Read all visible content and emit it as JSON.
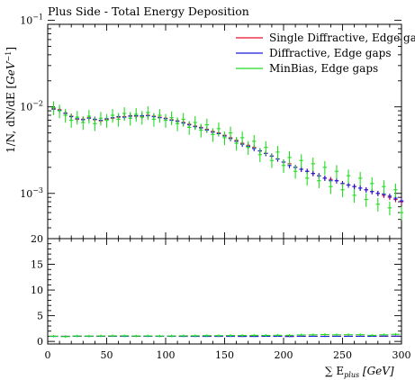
{
  "chart_data": {
    "type": "scatter",
    "title": "Plus Side - Total Energy Deposition",
    "ylabel": "1/N, dN/dE [GeV^{-1}]",
    "xlabel": "∑ E_plus [GeV]",
    "xlim": [
      0,
      300
    ],
    "xticks": [
      "0",
      "50",
      "100",
      "150",
      "200",
      "250",
      "300"
    ],
    "legend_position": "top-right",
    "main_panel": {
      "yscale": "log",
      "ylim": [
        0.0003,
        0.09
      ],
      "yticks": [
        "10^{-1}",
        "10^{-2}",
        "10^{-3}"
      ],
      "series": [
        {
          "name": "Single Diffractive, Edge gaps",
          "color": "#e8102a",
          "x": [
            5,
            10,
            15,
            20,
            25,
            30,
            35,
            40,
            45,
            50,
            55,
            60,
            65,
            70,
            75,
            80,
            85,
            90,
            95,
            100,
            105,
            110,
            115,
            120,
            125,
            130,
            135,
            140,
            145,
            150,
            155,
            160,
            165,
            170,
            175,
            180,
            185,
            190,
            195,
            200,
            205,
            210,
            215,
            220,
            225,
            230,
            235,
            240,
            245,
            250,
            255,
            260,
            265,
            270,
            275,
            280,
            285,
            290,
            295,
            300
          ],
          "y": [
            0.0096,
            0.0093,
            0.0085,
            0.0078,
            0.0072,
            0.0072,
            0.0075,
            0.0071,
            0.0069,
            0.0072,
            0.0074,
            0.0076,
            0.0077,
            0.0079,
            0.0078,
            0.0078,
            0.008,
            0.0078,
            0.0076,
            0.0074,
            0.0071,
            0.0069,
            0.0066,
            0.0063,
            0.006,
            0.0058,
            0.0055,
            0.0052,
            0.005,
            0.0047,
            0.0044,
            0.0041,
            0.0038,
            0.0036,
            0.0034,
            0.0031,
            0.0029,
            0.0027,
            0.0025,
            0.0023,
            0.0022,
            0.002,
            0.0019,
            0.0018,
            0.0017,
            0.0016,
            0.0015,
            0.00145,
            0.0014,
            0.0013,
            0.00125,
            0.0012,
            0.00115,
            0.0011,
            0.00105,
            0.001,
            0.00095,
            0.0009,
            0.00085,
            0.0008
          ]
        },
        {
          "name": "Diffractive, Edge gaps",
          "color": "#1a1adc",
          "x": [
            5,
            10,
            15,
            20,
            25,
            30,
            35,
            40,
            45,
            50,
            55,
            60,
            65,
            70,
            75,
            80,
            85,
            90,
            95,
            100,
            105,
            110,
            115,
            120,
            125,
            130,
            135,
            140,
            145,
            150,
            155,
            160,
            165,
            170,
            175,
            180,
            185,
            190,
            195,
            200,
            205,
            210,
            215,
            220,
            225,
            230,
            235,
            240,
            245,
            250,
            255,
            260,
            265,
            270,
            275,
            280,
            285,
            290,
            295,
            300
          ],
          "y": [
            0.0094,
            0.0091,
            0.0084,
            0.0077,
            0.0073,
            0.0071,
            0.0074,
            0.0072,
            0.007,
            0.0073,
            0.0075,
            0.0077,
            0.0076,
            0.0078,
            0.0079,
            0.0079,
            0.0079,
            0.0077,
            0.0075,
            0.0073,
            0.007,
            0.0068,
            0.0065,
            0.0062,
            0.0059,
            0.0057,
            0.0054,
            0.0051,
            0.0049,
            0.0046,
            0.0043,
            0.004,
            0.0037,
            0.0035,
            0.0033,
            0.0031,
            0.0029,
            0.0027,
            0.0025,
            0.0023,
            0.0021,
            0.002,
            0.0019,
            0.0018,
            0.0017,
            0.0016,
            0.0015,
            0.0014,
            0.0014,
            0.0013,
            0.00125,
            0.0012,
            0.00115,
            0.0011,
            0.00105,
            0.001,
            0.00098,
            0.00093,
            0.00088,
            0.00082
          ]
        },
        {
          "name": "MinBias, Edge gaps",
          "color": "#22dd22",
          "x": [
            5,
            10,
            15,
            20,
            25,
            30,
            35,
            40,
            45,
            50,
            55,
            60,
            65,
            70,
            75,
            80,
            85,
            90,
            95,
            100,
            105,
            110,
            115,
            120,
            125,
            130,
            135,
            140,
            145,
            150,
            155,
            160,
            165,
            170,
            175,
            180,
            185,
            190,
            195,
            200,
            205,
            210,
            215,
            220,
            225,
            230,
            235,
            240,
            245,
            250,
            255,
            260,
            265,
            270,
            275,
            280,
            285,
            290,
            295,
            300
          ],
          "y": [
            0.0098,
            0.009,
            0.008,
            0.007,
            0.0076,
            0.0066,
            0.0078,
            0.0064,
            0.0074,
            0.007,
            0.008,
            0.0072,
            0.0084,
            0.0074,
            0.0082,
            0.0076,
            0.0086,
            0.0072,
            0.008,
            0.007,
            0.0075,
            0.0064,
            0.0072,
            0.0058,
            0.0066,
            0.0054,
            0.0062,
            0.0048,
            0.0056,
            0.0044,
            0.005,
            0.0038,
            0.0044,
            0.0034,
            0.004,
            0.0028,
            0.0034,
            0.0024,
            0.003,
            0.0021,
            0.0026,
            0.0018,
            0.0024,
            0.0015,
            0.0022,
            0.0014,
            0.002,
            0.0012,
            0.0018,
            0.0011,
            0.0016,
            0.00095,
            0.0015,
            0.00085,
            0.0013,
            0.00075,
            0.0012,
            0.00068,
            0.0011,
            0.0006
          ]
        }
      ]
    },
    "ratio_panel": {
      "yscale": "linear",
      "ylim": [
        -0.5,
        20
      ],
      "yticks": [
        0,
        5,
        10,
        15,
        20
      ],
      "series": [
        {
          "name": "Single Diffractive, Edge gaps",
          "color": "#e8102a",
          "x": [
            5,
            15,
            25,
            35,
            45,
            55,
            65,
            75,
            85,
            95,
            105,
            115,
            125,
            135,
            145,
            155,
            165,
            175,
            185,
            195,
            205,
            215,
            225,
            235,
            245,
            255,
            265,
            275,
            285,
            295
          ],
          "y": [
            1.0,
            1.0,
            1.0,
            1.0,
            1.0,
            1.0,
            1.0,
            1.0,
            1.0,
            1.0,
            1.0,
            1.0,
            1.0,
            1.0,
            1.0,
            1.0,
            1.0,
            1.0,
            1.0,
            1.0,
            1.0,
            1.0,
            1.0,
            1.0,
            1.0,
            1.0,
            1.0,
            1.0,
            1.0,
            1.0
          ]
        },
        {
          "name": "Diffractive, Edge gaps",
          "color": "#1a1adc",
          "x": [
            5,
            15,
            25,
            35,
            45,
            55,
            65,
            75,
            85,
            95,
            105,
            115,
            125,
            135,
            145,
            155,
            165,
            175,
            185,
            195,
            205,
            215,
            225,
            235,
            245,
            255,
            265,
            275,
            285,
            295
          ],
          "y": [
            0.98,
            0.99,
            1.0,
            0.99,
            1.01,
            1.01,
            0.99,
            1.01,
            0.99,
            0.99,
            0.99,
            0.98,
            0.98,
            0.98,
            0.98,
            0.98,
            0.97,
            0.97,
            1.0,
            1.0,
            0.95,
            1.0,
            1.0,
            0.98,
            1.0,
            1.0,
            1.0,
            1.0,
            1.03,
            1.03
          ]
        },
        {
          "name": "MinBias, Edge gaps",
          "color": "#22dd22",
          "x": [
            5,
            15,
            25,
            35,
            45,
            55,
            65,
            75,
            85,
            95,
            105,
            115,
            125,
            135,
            145,
            155,
            165,
            175,
            185,
            195,
            205,
            215,
            225,
            235,
            245,
            255,
            265,
            275,
            285,
            295
          ],
          "y": [
            1.02,
            0.94,
            1.05,
            1.04,
            1.07,
            1.08,
            1.09,
            1.05,
            1.07,
            1.05,
            1.06,
            1.09,
            1.1,
            1.13,
            1.12,
            1.14,
            1.16,
            1.18,
            1.17,
            1.2,
            1.18,
            1.26,
            1.29,
            1.33,
            1.29,
            1.3,
            1.3,
            1.18,
            1.29,
            1.38
          ]
        }
      ]
    }
  }
}
